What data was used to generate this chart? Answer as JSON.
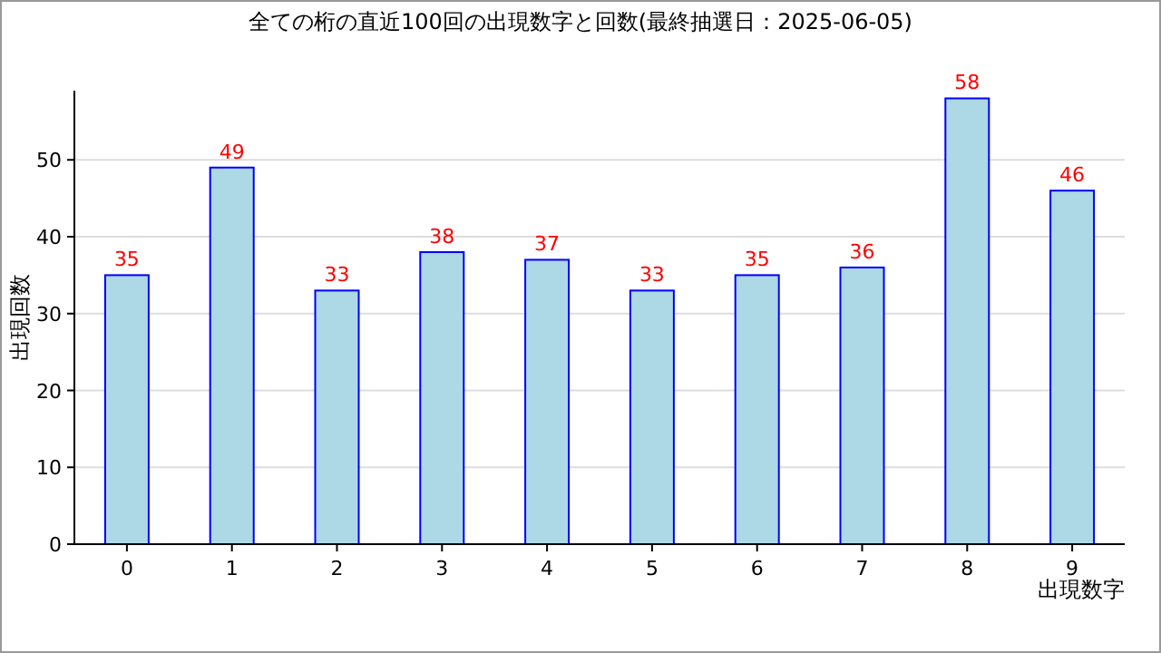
{
  "chart_data": {
    "type": "bar",
    "title": "全ての桁の直近100回の出現数字と回数(最終抽選日：2025-06-05)",
    "xlabel": "出現数字",
    "ylabel": "出現回数",
    "categories": [
      "0",
      "1",
      "2",
      "3",
      "4",
      "5",
      "6",
      "7",
      "8",
      "9"
    ],
    "values": [
      35,
      49,
      33,
      38,
      37,
      33,
      35,
      36,
      58,
      46
    ],
    "color": "#add8e6",
    "ylim": [
      0,
      59
    ],
    "yticks": [
      0,
      10,
      20,
      30,
      40,
      50
    ],
    "grid": "y",
    "data_labels": true
  }
}
